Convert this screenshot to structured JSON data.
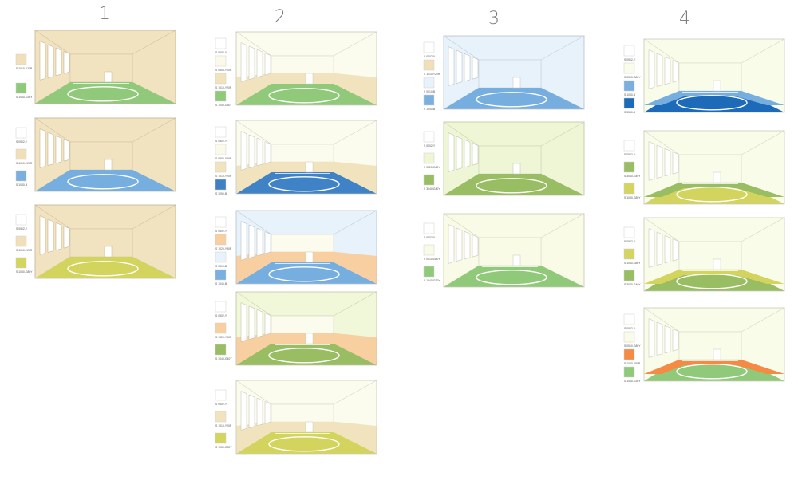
{
  "columns": [
    {
      "label": "1",
      "rooms": [
        {
          "wall": "#f2e3c0",
          "floor": "#90c97a",
          "court_line": "#ffffff",
          "swatches": [
            {
              "color": "#f0dfb8",
              "code": "S 1010-Y20R"
            },
            {
              "color": "#8fca7a",
              "code": "S 1040-G30Y"
            }
          ]
        },
        {
          "wall": "#f2e3c0",
          "floor": "#76aee0",
          "court_line": "#ffffff",
          "swatches": [
            {
              "color": "#ffffff",
              "code": "S 0502-Y"
            },
            {
              "color": "#f0dfb8",
              "code": "S 1010-Y20R"
            },
            {
              "color": "#7aafe0",
              "code": "S 1040-B"
            }
          ]
        },
        {
          "wall": "#f2e3c0",
          "floor": "#d2d45e",
          "court_line": "#ffffff",
          "swatches": [
            {
              "color": "#ffffff",
              "code": "S 0502-Y"
            },
            {
              "color": "#f0dfb8",
              "code": "S 1010-Y20R"
            },
            {
              "color": "#d3d55f",
              "code": "S 1050-G80Y"
            }
          ]
        }
      ]
    },
    {
      "label": "2",
      "rooms": [
        {
          "wall": "#fbfbee",
          "back_wall": "#fbfbee",
          "side": "#fbfbee",
          "band": "#f0e3be",
          "floor": "#90c97a",
          "court_line": "#ffffff",
          "swatches": [
            {
              "color": "#ffffff",
              "code": "S 0502-Y"
            },
            {
              "color": "#fbfaea",
              "code": "S 0505-Y20R"
            },
            {
              "color": "#f0e3be",
              "code": "S 1010-Y20R"
            },
            {
              "color": "#8fca7a",
              "code": "S 1040-G30Y"
            }
          ]
        },
        {
          "wall": "#fbfbee",
          "back_wall": "#fbfbee",
          "side": "#fbfbee",
          "band": "#f0e3be",
          "floor": "#3f82c6",
          "court_line": "#ffffff",
          "swatches": [
            {
              "color": "#ffffff",
              "code": "S 0502-Y"
            },
            {
              "color": "#fbfaea",
              "code": "S 0505-Y20R"
            },
            {
              "color": "#f0e3be",
              "code": "S 1010-Y20R"
            },
            {
              "color": "#3f80c4",
              "code": "S 3050-B"
            }
          ]
        },
        {
          "wall": "#e8f2fb",
          "back_wall": "#fbfbee",
          "side": "#e8f2fb",
          "band": "#f8cfa0",
          "floor": "#76aee0",
          "court_line": "#ffffff",
          "swatches": [
            {
              "color": "#ffffff",
              "code": "S 0502-Y"
            },
            {
              "color": "#f8cfa0",
              "code": "S 1020-Y30R"
            },
            {
              "color": "#e8f2fb",
              "code": "S 0510-B"
            },
            {
              "color": "#7aafe0",
              "code": "S 1040-B"
            }
          ]
        },
        {
          "wall": "#f1f7d9",
          "back_wall": "#fbfbee",
          "side": "#f1f7d9",
          "band": "#f8cfa0",
          "floor": "#98bd62",
          "court_line": "#ffffff",
          "swatches": [
            {
              "color": "#ffffff",
              "code": "S 0502-Y"
            },
            {
              "color": "#f8cfa0",
              "code": "S 1020-Y30R"
            },
            {
              "color": "#98bd62",
              "code": "S 3040-G40Y"
            }
          ]
        },
        {
          "wall": "#fbfbee",
          "back_wall": "#fbfbee",
          "side": "#fbfbee",
          "band": "#f0e3be",
          "floor": "#d2d45e",
          "court_line": "#ffffff",
          "swatches": [
            {
              "color": "#ffffff",
              "code": "S 0502-Y"
            },
            {
              "color": "#f0e3be",
              "code": "S 1010-Y20R"
            },
            {
              "color": "#d3d55f",
              "code": "S 1050-G80Y"
            }
          ]
        }
      ]
    },
    {
      "label": "3",
      "rooms": [
        {
          "wall": "#e8f2fb",
          "floor": "#76aee0",
          "court_line": "#ffffff",
          "swatches": [
            {
              "color": "#ffffff",
              "code": "S 0502-Y"
            },
            {
              "color": "#f0dfb8",
              "code": "S 1010-Y20R"
            },
            {
              "color": "#e8f2fb",
              "code": "S 0510-B"
            },
            {
              "color": "#7aafe0",
              "code": "S 1040-B"
            }
          ]
        },
        {
          "wall": "#eef6d6",
          "floor": "#98bd62",
          "court_line": "#ffffff",
          "swatches": [
            {
              "color": "#ffffff",
              "code": "S 0502-Y"
            },
            {
              "color": "#eef6d6",
              "code": "S 0520-G40Y"
            },
            {
              "color": "#98bd62",
              "code": "S 3040-G40Y"
            }
          ]
        },
        {
          "wall": "#f9fbe6",
          "floor": "#90c97a",
          "court_line": "#ffffff",
          "swatches": [
            {
              "color": "#ffffff",
              "code": "S 0502-Y"
            },
            {
              "color": "#f9fbe6",
              "code": "S 0510-G80Y"
            },
            {
              "color": "#8fca7a",
              "code": "S 1040-G30Y"
            }
          ]
        }
      ]
    },
    {
      "label": "4",
      "rooms": [
        {
          "wall": "#fafcea",
          "floor": "#1d6ab8",
          "floor_side": "#76aee0",
          "court_line": "#ffffff",
          "swatches": [
            {
              "color": "#ffffff",
              "code": "S 0502-Y"
            },
            {
              "color": "#fafcea",
              "code": "S 0510-G80Y"
            },
            {
              "color": "#7aafe0",
              "code": "S 1040-B"
            },
            {
              "color": "#1d6ab8",
              "code": "S 3560-B"
            }
          ]
        },
        {
          "wall": "#fafcea",
          "floor": "#d2d45e",
          "floor_side": "#98bd62",
          "court_line": "#ffffff",
          "swatches": [
            {
              "color": "#ffffff",
              "code": "S 0502-Y"
            },
            {
              "color": "#98bd62",
              "code": "S 3040-G40Y"
            },
            {
              "color": "#d3d55f",
              "code": "S 1050-G80Y"
            }
          ]
        },
        {
          "wall": "#fafcea",
          "floor": "#98bd62",
          "floor_side": "#d2d45e",
          "court_line": "#ffffff",
          "swatches": [
            {
              "color": "#ffffff",
              "code": "S 0502-Y"
            },
            {
              "color": "#d3d55f",
              "code": "S 1050-G80Y"
            },
            {
              "color": "#98bd62",
              "code": "S 3040-G40Y"
            }
          ]
        },
        {
          "wall": "#fafcea",
          "floor": "#90c97a",
          "floor_side": "#f58a45",
          "court_line": "#ffffff",
          "swatches": [
            {
              "color": "#ffffff",
              "code": "S 0502-Y"
            },
            {
              "color": "#fafcea",
              "code": "S 0510-G80Y"
            },
            {
              "color": "#f58a45",
              "code": "S 1060-Y50R"
            },
            {
              "color": "#8fca7a",
              "code": "S 1040-G30Y"
            }
          ]
        }
      ]
    }
  ]
}
